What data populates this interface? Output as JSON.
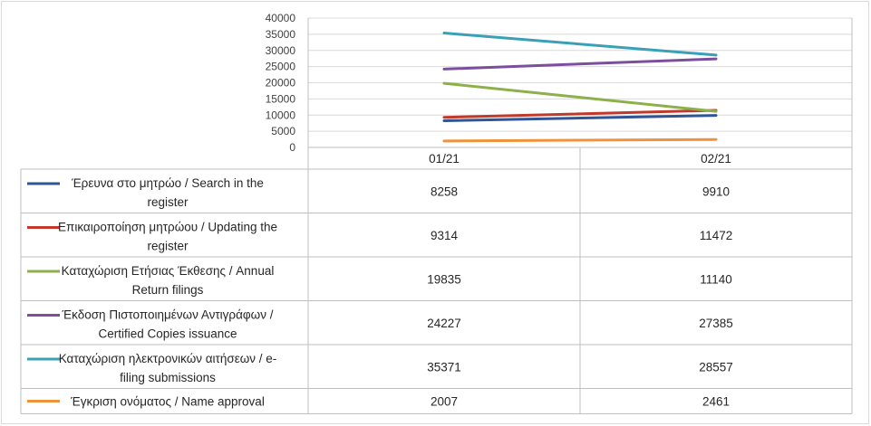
{
  "chart_data": {
    "type": "line",
    "title": "",
    "xlabel": "",
    "ylabel": "",
    "categories": [
      "01/21",
      "02/21"
    ],
    "ylim": [
      0,
      40000
    ],
    "yticks": [
      0,
      5000,
      10000,
      15000,
      20000,
      25000,
      30000,
      35000,
      40000
    ],
    "grid": true,
    "legend": "table-left",
    "series": [
      {
        "name": "Έρευνα στο μητρώο / Search in the register",
        "label_lines": [
          "Έρευνα στο μητρώο / Search in the",
          "register"
        ],
        "color": "#2f5597",
        "values": [
          8258,
          9910
        ]
      },
      {
        "name": "Επικαιροποίηση μητρώου / Updating the register",
        "label_lines": [
          "Επικαιροποίηση μητρώου / Updating the",
          "register"
        ],
        "color": "#c0392b",
        "values": [
          9314,
          11472
        ]
      },
      {
        "name": "Καταχώριση Ετήσιας Έκθεσης / Annual Return filings",
        "label_lines": [
          "Καταχώριση Ετήσιας Έκθεσης / Annual",
          "Return filings"
        ],
        "color": "#8db04a",
        "values": [
          19835,
          11140
        ]
      },
      {
        "name": "Έκδοση Πιστοποιημένων Αντιγράφων / Certified Copies issuance",
        "label_lines": [
          "Έκδοση Πιστοποιημένων Αντιγράφων /",
          "Certified Copies issuance"
        ],
        "color": "#7b4f9e",
        "values": [
          24227,
          27385
        ]
      },
      {
        "name": "Καταχώριση ηλεκτρονικών αιτήσεων / e-filing submissions",
        "label_lines": [
          "Καταχώριση ηλεκτρονικών αιτήσεων / e-",
          "filing submissions"
        ],
        "color": "#3aa0b8",
        "values": [
          35371,
          28557
        ]
      },
      {
        "name": "Έγκριση ονόματος / Name approval",
        "label_lines": [
          "Έγκριση ονόματος / Name approval"
        ],
        "color": "#f0923b",
        "values": [
          2007,
          2461
        ]
      }
    ]
  }
}
